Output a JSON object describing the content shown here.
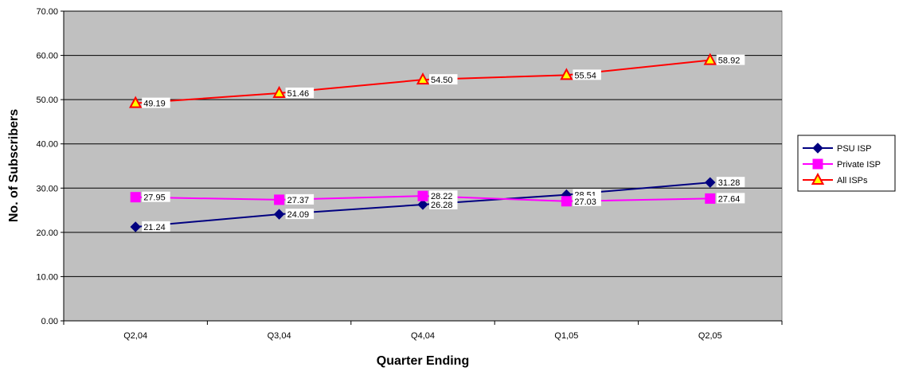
{
  "chart_data": {
    "type": "line",
    "title": "",
    "xlabel": "Quarter Ending",
    "ylabel": "No. of Subscribers",
    "categories": [
      "Q2,04",
      "Q3,04",
      "Q4,04",
      "Q1,05",
      "Q2,05"
    ],
    "ylim": [
      0,
      70
    ],
    "yticks": [
      "0.00",
      "10.00",
      "20.00",
      "30.00",
      "40.00",
      "50.00",
      "60.00",
      "70.00"
    ],
    "grid": true,
    "legend_position": "right",
    "plot_background": "#c0c0c0",
    "series": [
      {
        "name": "PSU ISP",
        "values": [
          21.24,
          24.09,
          26.28,
          28.51,
          31.28
        ],
        "labels": [
          "21.24",
          "24.09",
          "26.28",
          "28.51",
          "31.28"
        ],
        "color": "#000080",
        "marker": "diamond",
        "marker_fill": "#000080"
      },
      {
        "name": "Private ISP",
        "values": [
          27.95,
          27.37,
          28.22,
          27.03,
          27.64
        ],
        "labels": [
          "27.95",
          "27.37",
          "28.22",
          "27.03",
          "27.64"
        ],
        "color": "#ff00ff",
        "marker": "square",
        "marker_fill": "#ff00ff"
      },
      {
        "name": "All ISPs",
        "values": [
          49.19,
          51.46,
          54.5,
          55.54,
          58.92
        ],
        "labels": [
          "49.19",
          "51.46",
          "54.50",
          "55.54",
          "58.92"
        ],
        "color": "#ff0000",
        "marker": "triangle",
        "marker_fill": "#ffff00"
      }
    ]
  }
}
